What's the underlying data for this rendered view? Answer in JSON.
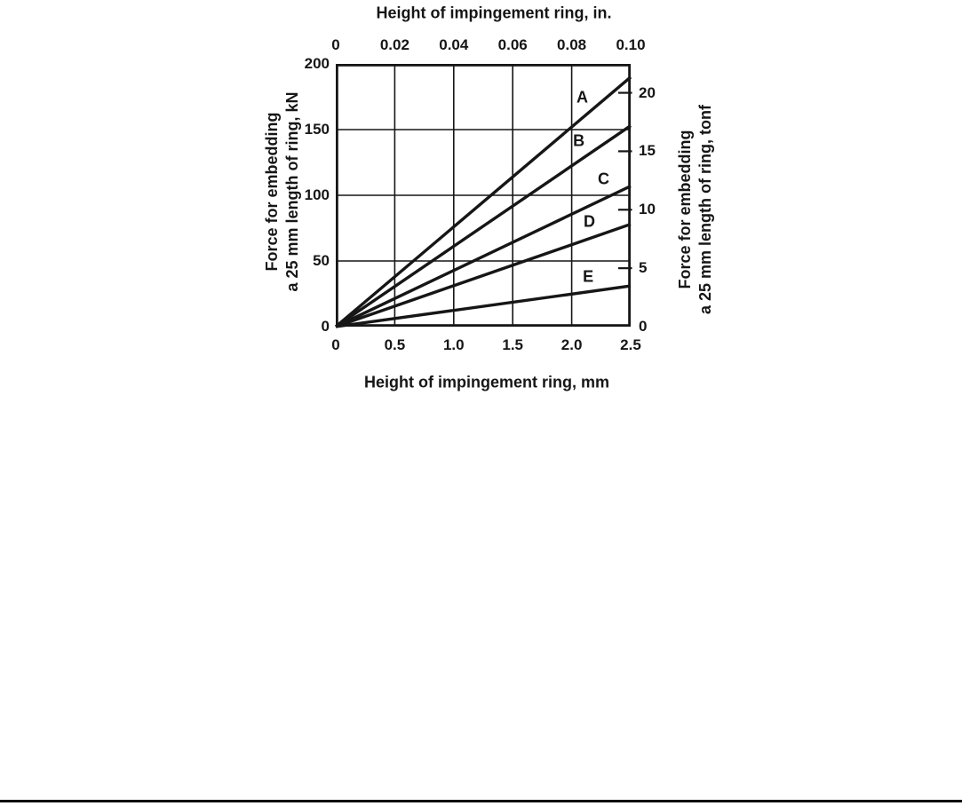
{
  "figure": {
    "top_axis_title": "Height of impingement ring, in.",
    "bottom_axis_title": "Height of impingement ring, mm",
    "left_axis_title_line1": "Force for embedding",
    "left_axis_title_line2": "a 25 mm length of ring, kN",
    "right_axis_title_line1": "Force for embedding",
    "right_axis_title_line2": "a 25 mm length of ring, tonf"
  },
  "chart_data": {
    "type": "line",
    "title": "Height of impingement ring, in.",
    "xlabel": "Height of impingement ring, mm",
    "ylabel": "Force for embedding a 25 mm length of ring, kN",
    "ylabel_right": "Force for embedding a 25 mm length of ring, tonf",
    "grid": true,
    "line_color": "#161616",
    "x_axis_bottom": {
      "unit": "mm",
      "range": [
        0,
        2.5
      ],
      "tick_labels": [
        "0",
        "0.5",
        "1.0",
        "1.5",
        "2.0",
        "2.5"
      ],
      "tick_values": [
        0,
        0.5,
        1.0,
        1.5,
        2.0,
        2.5
      ]
    },
    "x_axis_top": {
      "unit": "in.",
      "range": [
        0,
        0.1
      ],
      "tick_labels": [
        "0",
        "0.02",
        "0.04",
        "0.06",
        "0.08",
        "0.10"
      ],
      "tick_values": [
        0,
        0.02,
        0.04,
        0.06,
        0.08,
        0.1
      ]
    },
    "y_axis_left": {
      "unit": "kN",
      "range": [
        0,
        200
      ],
      "tick_labels": [
        "200",
        "150",
        "100",
        "50",
        "0"
      ],
      "tick_values": [
        200,
        150,
        100,
        50,
        0
      ]
    },
    "y_axis_right": {
      "unit": "tonf",
      "tick_labels": [
        "20",
        "15",
        "10",
        "5",
        "0"
      ],
      "tick_values": [
        20,
        15,
        10,
        5,
        0
      ],
      "kn_per_tonf": 8.9
    },
    "series": [
      {
        "name": "A",
        "x_mm": [
          0,
          2.5
        ],
        "y_kn": [
          0,
          190
        ],
        "label_pos": {
          "mm": 2.09,
          "kn": 174
        }
      },
      {
        "name": "B",
        "x_mm": [
          0,
          2.5
        ],
        "y_kn": [
          0,
          153
        ],
        "label_pos": {
          "mm": 2.06,
          "kn": 141
        }
      },
      {
        "name": "C",
        "x_mm": [
          0,
          2.5
        ],
        "y_kn": [
          0,
          107
        ],
        "label_pos": {
          "mm": 2.27,
          "kn": 112
        }
      },
      {
        "name": "D",
        "x_mm": [
          0,
          2.5
        ],
        "y_kn": [
          0,
          78
        ],
        "label_pos": {
          "mm": 2.15,
          "kn": 80
        }
      },
      {
        "name": "E",
        "x_mm": [
          0,
          2.5
        ],
        "y_kn": [
          0,
          31
        ],
        "label_pos": {
          "mm": 2.14,
          "kn": 38
        }
      }
    ]
  }
}
